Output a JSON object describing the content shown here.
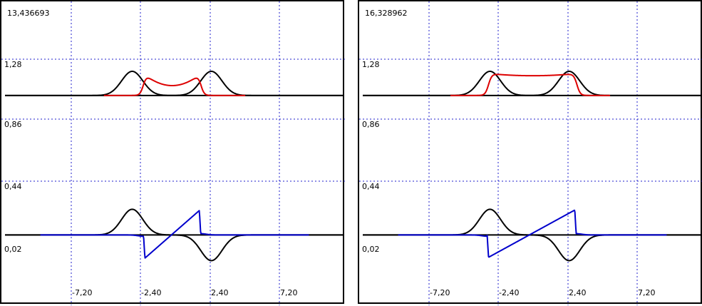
{
  "chart_data": [
    {
      "type": "line",
      "title": "",
      "readout": "13,436693",
      "ytick_labels": [
        "1,28",
        "0,86",
        "0,44",
        "0,02"
      ],
      "xtick_labels": [
        "-7,20",
        "-2,40",
        "2,40",
        "7,20"
      ],
      "xlim": [
        -12.0,
        12.0
      ],
      "grid": true,
      "upper_plot": {
        "baseline": 1.0,
        "ylim": [
          0.7,
          1.35
        ],
        "series": [
          {
            "color": "#000000",
            "kind": "two_gaussians",
            "centers": [
              -3.0,
              2.6
            ],
            "sigma": 0.75,
            "amplitude": 0.22
          },
          {
            "color": "#dd0000",
            "kind": "well",
            "left": -2.2,
            "right": 1.85,
            "height": 0.2,
            "dip": 0.11,
            "wall_width": 0.12,
            "range": [
              -5,
              5
            ]
          }
        ]
      },
      "lower_plot": {
        "baseline": 0.02,
        "ylim": [
          -0.3,
          0.45
        ],
        "series": [
          {
            "color": "#000000",
            "kind": "antisym_gaussians",
            "centers": [
              -3.0,
              2.6
            ],
            "sigma": 0.75,
            "amplitude": 0.2
          },
          {
            "color": "#0000cc",
            "kind": "sawtooth",
            "left": -2.2,
            "right": 1.85,
            "low": -0.19,
            "high": 0.2
          }
        ]
      }
    },
    {
      "type": "line",
      "title": "",
      "readout": "16,328962",
      "ytick_labels": [
        "1,28",
        "0,86",
        "0,44",
        "0,02"
      ],
      "xtick_labels": [
        "-7,20",
        "-2,40",
        "2,40",
        "7,20"
      ],
      "xlim": [
        -12.0,
        12.0
      ],
      "grid": true,
      "upper_plot": {
        "baseline": 1.0,
        "ylim": [
          0.7,
          1.35
        ],
        "series": [
          {
            "color": "#000000",
            "kind": "two_gaussians",
            "centers": [
              -3.0,
              2.6
            ],
            "sigma": 0.75,
            "amplitude": 0.22
          },
          {
            "color": "#dd0000",
            "kind": "well",
            "left": -3.1,
            "right": 3.15,
            "height": 0.2,
            "dip": 0.02,
            "wall_width": 0.12,
            "range": [
              -5.8,
              5.5
            ]
          }
        ]
      },
      "lower_plot": {
        "baseline": 0.02,
        "ylim": [
          -0.3,
          0.45
        ],
        "series": [
          {
            "color": "#000000",
            "kind": "antisym_gaussians",
            "centers": [
              -3.0,
              2.6
            ],
            "sigma": 0.75,
            "amplitude": 0.2
          },
          {
            "color": "#0000cc",
            "kind": "sawtooth",
            "left": -3.2,
            "right": 3.1,
            "low": -0.18,
            "high": 0.2
          }
        ]
      }
    }
  ]
}
